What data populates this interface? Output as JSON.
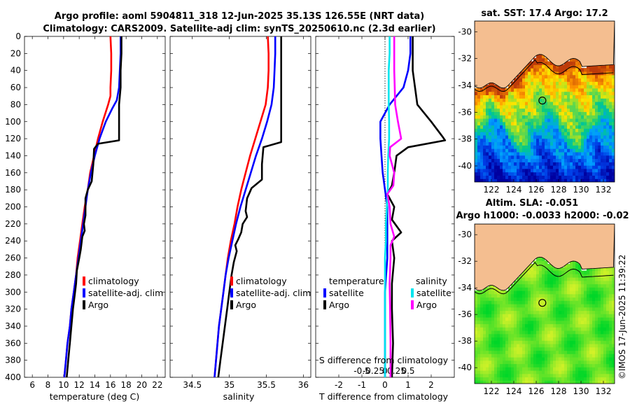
{
  "header": {
    "line1": "Argo profile: aoml 5904811_318 12-Jun-2025 35.13S 126.55E (NRT data)",
    "line2": "Climatology: CARS2009. Satellite-adj clim: synTS_20250610.nc (2.3d earlier)"
  },
  "colors": {
    "clim": "#ff0000",
    "sat": "#0000ff",
    "argo": "#000000",
    "sat_s": "#00e5ee",
    "argo_s": "#ff00ff",
    "land": "#f4be90"
  },
  "chart_data": [
    {
      "type": "line",
      "id": "temperature",
      "xlabel": "temperature (deg C)",
      "ylabel": "depth",
      "xlim": [
        5,
        23
      ],
      "ylim": [
        0,
        400
      ],
      "xticks": [
        "6",
        "8",
        "10",
        "12",
        "14",
        "16",
        "18",
        "20",
        "22"
      ],
      "xtick_values": [
        6,
        8,
        10,
        12,
        14,
        16,
        18,
        20,
        22
      ],
      "yticks": [
        "0",
        "20",
        "40",
        "60",
        "80",
        "100",
        "120",
        "140",
        "160",
        "180",
        "200",
        "220",
        "240",
        "260",
        "280",
        "300",
        "320",
        "340",
        "360",
        "380",
        "400"
      ],
      "legend": [
        "climatology",
        "satellite-adj. clim",
        "Argo"
      ],
      "series": [
        {
          "name": "climatology",
          "color": "#ff0000",
          "points": [
            [
              16.0,
              0
            ],
            [
              16.1,
              20
            ],
            [
              16.1,
              40
            ],
            [
              16.0,
              60
            ],
            [
              16.0,
              70
            ],
            [
              15.7,
              80
            ],
            [
              15.0,
              100
            ],
            [
              14.4,
              120
            ],
            [
              13.9,
              140
            ],
            [
              13.4,
              160
            ],
            [
              13.1,
              180
            ],
            [
              12.7,
              200
            ],
            [
              12.4,
              220
            ],
            [
              12.1,
              240
            ],
            [
              11.8,
              260
            ],
            [
              11.6,
              280
            ],
            [
              11.3,
              300
            ],
            [
              11.0,
              320
            ],
            [
              10.8,
              340
            ],
            [
              10.5,
              360
            ],
            [
              10.3,
              380
            ],
            [
              10.1,
              400
            ]
          ]
        },
        {
          "name": "satellite-adj. clim",
          "color": "#0000ff",
          "points": [
            [
              17.3,
              0
            ],
            [
              17.3,
              20
            ],
            [
              17.2,
              40
            ],
            [
              17.1,
              60
            ],
            [
              16.8,
              75
            ],
            [
              16.2,
              85
            ],
            [
              15.4,
              100
            ],
            [
              14.6,
              120
            ],
            [
              14.0,
              140
            ],
            [
              13.5,
              160
            ],
            [
              13.1,
              180
            ],
            [
              12.8,
              200
            ],
            [
              12.5,
              220
            ],
            [
              12.2,
              240
            ],
            [
              11.9,
              260
            ],
            [
              11.6,
              280
            ],
            [
              11.3,
              300
            ],
            [
              11.0,
              320
            ],
            [
              10.8,
              340
            ],
            [
              10.5,
              360
            ],
            [
              10.3,
              380
            ],
            [
              10.1,
              400
            ]
          ]
        },
        {
          "name": "Argo",
          "color": "#000000",
          "points": [
            [
              17.4,
              0
            ],
            [
              17.4,
              20
            ],
            [
              17.3,
              40
            ],
            [
              17.3,
              60
            ],
            [
              17.1,
              80
            ],
            [
              17.1,
              100
            ],
            [
              17.1,
              122
            ],
            [
              14.4,
              126
            ],
            [
              13.9,
              132
            ],
            [
              13.8,
              150
            ],
            [
              13.6,
              170
            ],
            [
              13.1,
              180
            ],
            [
              12.8,
              190
            ],
            [
              12.8,
              210
            ],
            [
              12.6,
              220
            ],
            [
              12.7,
              228
            ],
            [
              12.4,
              235
            ],
            [
              12.2,
              250
            ],
            [
              12.0,
              260
            ],
            [
              11.7,
              275
            ],
            [
              11.6,
              290
            ],
            [
              11.4,
              305
            ],
            [
              11.2,
              320
            ],
            [
              11.0,
              340
            ],
            [
              10.8,
              360
            ],
            [
              10.6,
              380
            ],
            [
              10.4,
              400
            ]
          ]
        }
      ]
    },
    {
      "type": "line",
      "id": "salinity",
      "xlabel": "salinity",
      "xlim": [
        34.2,
        36.1
      ],
      "xticks": [
        "34.5",
        "35",
        "35.5",
        "36"
      ],
      "xtick_values": [
        34.5,
        35,
        35.5,
        36
      ],
      "series": [
        {
          "name": "climatology",
          "color": "#ff0000",
          "points": [
            [
              35.52,
              0
            ],
            [
              35.53,
              20
            ],
            [
              35.53,
              40
            ],
            [
              35.52,
              60
            ],
            [
              35.49,
              80
            ],
            [
              35.42,
              100
            ],
            [
              35.35,
              120
            ],
            [
              35.28,
              140
            ],
            [
              35.22,
              160
            ],
            [
              35.16,
              180
            ],
            [
              35.11,
              200
            ],
            [
              35.07,
              220
            ],
            [
              35.02,
              240
            ],
            [
              34.98,
              260
            ],
            [
              34.95,
              280
            ],
            [
              34.92,
              300
            ],
            [
              34.89,
              320
            ],
            [
              34.86,
              340
            ],
            [
              34.84,
              360
            ],
            [
              34.82,
              380
            ],
            [
              34.8,
              400
            ]
          ]
        },
        {
          "name": "satellite-adj. clim",
          "color": "#0000ff",
          "points": [
            [
              35.62,
              0
            ],
            [
              35.62,
              20
            ],
            [
              35.61,
              40
            ],
            [
              35.6,
              60
            ],
            [
              35.57,
              80
            ],
            [
              35.51,
              100
            ],
            [
              35.44,
              120
            ],
            [
              35.36,
              140
            ],
            [
              35.29,
              160
            ],
            [
              35.22,
              180
            ],
            [
              35.15,
              200
            ],
            [
              35.09,
              220
            ],
            [
              35.04,
              240
            ],
            [
              34.99,
              260
            ],
            [
              34.95,
              280
            ],
            [
              34.92,
              300
            ],
            [
              34.89,
              320
            ],
            [
              34.86,
              340
            ],
            [
              34.84,
              360
            ],
            [
              34.82,
              380
            ],
            [
              34.8,
              400
            ]
          ]
        },
        {
          "name": "Argo",
          "color": "#000000",
          "points": [
            [
              35.7,
              0
            ],
            [
              35.7,
              20
            ],
            [
              35.7,
              40
            ],
            [
              35.7,
              60
            ],
            [
              35.7,
              80
            ],
            [
              35.7,
              100
            ],
            [
              35.7,
              124
            ],
            [
              35.46,
              130
            ],
            [
              35.44,
              150
            ],
            [
              35.44,
              168
            ],
            [
              35.3,
              178
            ],
            [
              35.24,
              190
            ],
            [
              35.22,
              205
            ],
            [
              35.24,
              212
            ],
            [
              35.18,
              220
            ],
            [
              35.16,
              230
            ],
            [
              35.12,
              238
            ],
            [
              35.08,
              245
            ],
            [
              35.1,
              252
            ],
            [
              35.06,
              265
            ],
            [
              35.03,
              280
            ],
            [
              35.0,
              300
            ],
            [
              34.97,
              320
            ],
            [
              34.94,
              340
            ],
            [
              34.91,
              360
            ],
            [
              34.88,
              380
            ],
            [
              34.85,
              400
            ]
          ]
        }
      ]
    },
    {
      "type": "line",
      "id": "difference",
      "xlabel": "T difference from climatology",
      "xlabel_top": "S difference from climatology",
      "xlim": [
        -3,
        3
      ],
      "xticks": [
        "-2",
        "-1",
        "0",
        "1",
        "2"
      ],
      "xtick_values": [
        -2,
        -1,
        0,
        1,
        2
      ],
      "sticks": [
        "-0.5",
        "-0.25",
        "0",
        "0.25",
        "0.5"
      ],
      "stick_values": [
        -0.5,
        -0.25,
        0,
        0.25,
        0.5
      ],
      "legend_t": [
        "temperature",
        "satellite",
        "Argo"
      ],
      "legend_s": [
        "salinity",
        "satellite",
        "Argo"
      ],
      "series": [
        {
          "name": "temperature satellite",
          "color": "#0000ff",
          "points": [
            [
              1.1,
              0
            ],
            [
              1.1,
              20
            ],
            [
              1.0,
              40
            ],
            [
              0.8,
              60
            ],
            [
              0.2,
              80
            ],
            [
              -0.2,
              100
            ],
            [
              -0.2,
              120
            ],
            [
              -0.15,
              140
            ],
            [
              -0.1,
              160
            ],
            [
              0.0,
              180
            ],
            [
              0.1,
              200
            ],
            [
              0.1,
              220
            ],
            [
              0.1,
              240
            ],
            [
              0.1,
              260
            ],
            [
              0.05,
              280
            ],
            [
              0.0,
              300
            ],
            [
              0.0,
              340
            ],
            [
              0.0,
              400
            ]
          ]
        },
        {
          "name": "temperature Argo",
          "color": "#000000",
          "points": [
            [
              1.2,
              0
            ],
            [
              1.2,
              20
            ],
            [
              1.2,
              40
            ],
            [
              1.3,
              60
            ],
            [
              1.4,
              80
            ],
            [
              2.0,
              100
            ],
            [
              2.5,
              118
            ],
            [
              2.6,
              122
            ],
            [
              1.0,
              130
            ],
            [
              0.5,
              140
            ],
            [
              0.4,
              160
            ],
            [
              0.3,
              175
            ],
            [
              0.1,
              185
            ],
            [
              0.4,
              200
            ],
            [
              0.3,
              215
            ],
            [
              0.7,
              230
            ],
            [
              0.3,
              240
            ],
            [
              0.4,
              260
            ],
            [
              0.3,
              290
            ],
            [
              0.3,
              320
            ],
            [
              0.35,
              360
            ],
            [
              0.3,
              400
            ]
          ]
        },
        {
          "name": "salinity satellite",
          "color": "#00e5ee",
          "points": [
            [
              0.1,
              0
            ],
            [
              0.1,
              20
            ],
            [
              0.08,
              40
            ],
            [
              0.08,
              60
            ],
            [
              0.08,
              80
            ],
            [
              0.09,
              100
            ],
            [
              0.09,
              120
            ],
            [
              0.07,
              140
            ],
            [
              0.06,
              160
            ],
            [
              0.06,
              180
            ],
            [
              0.04,
              200
            ],
            [
              0.02,
              220
            ],
            [
              0.02,
              240
            ],
            [
              0.0,
              260
            ],
            [
              0.0,
              300
            ],
            [
              0.0,
              400
            ]
          ]
        },
        {
          "name": "salinity Argo",
          "color": "#ff00ff",
          "points": [
            [
              0.2,
              0
            ],
            [
              0.2,
              20
            ],
            [
              0.2,
              40
            ],
            [
              0.21,
              60
            ],
            [
              0.22,
              80
            ],
            [
              0.28,
              100
            ],
            [
              0.35,
              120
            ],
            [
              0.11,
              130
            ],
            [
              0.1,
              140
            ],
            [
              0.2,
              160
            ],
            [
              0.18,
              175
            ],
            [
              0.05,
              185
            ],
            [
              0.1,
              200
            ],
            [
              0.12,
              220
            ],
            [
              0.2,
              235
            ],
            [
              0.12,
              245
            ],
            [
              0.12,
              260
            ],
            [
              0.1,
              290
            ],
            [
              0.11,
              320
            ],
            [
              0.12,
              360
            ],
            [
              0.12,
              400
            ]
          ]
        }
      ]
    }
  ],
  "map_top": {
    "title": "sat. SST: 17.4 Argo: 17.2",
    "xticks": [
      "122",
      "124",
      "126",
      "128",
      "130",
      "132"
    ],
    "xtick_values": [
      122,
      124,
      126,
      128,
      130,
      132
    ],
    "yticks": [
      "-30",
      "-32",
      "-34",
      "-36",
      "-38",
      "-40"
    ],
    "ytick_values": [
      -30,
      -32,
      -34,
      -36,
      -38,
      -40
    ],
    "lon_range": [
      120.5,
      133.0
    ],
    "lat_range": [
      -41.2,
      -29.2
    ],
    "float_position": [
      126.55,
      -35.13
    ]
  },
  "map_bottom": {
    "title1": "Altim. SLA: -0.051",
    "title2": "Argo h1000: -0.0033 h2000: -0.02",
    "xticks": [
      "122",
      "124",
      "126",
      "128",
      "130",
      "132"
    ],
    "xtick_values": [
      122,
      124,
      126,
      128,
      130,
      132
    ],
    "yticks": [
      "-30",
      "-32",
      "-34",
      "-36",
      "-38",
      "-40"
    ],
    "ytick_values": [
      -30,
      -32,
      -34,
      -36,
      -38,
      -40
    ],
    "lon_range": [
      120.5,
      133.0
    ],
    "lat_range": [
      -41.2,
      -29.2
    ],
    "float_position": [
      126.55,
      -35.13
    ]
  },
  "stamp": "©IMOS 17-Jun-2025 11:39:22"
}
